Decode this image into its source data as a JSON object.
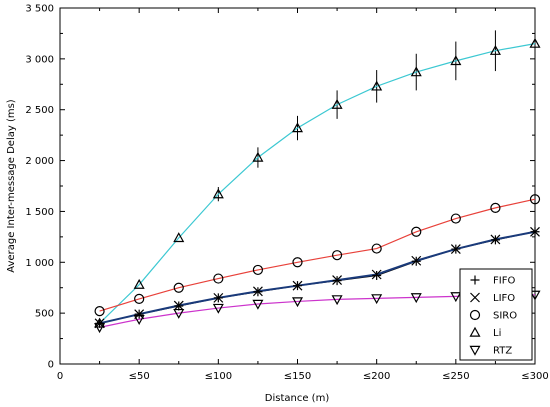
{
  "chart_data": {
    "type": "line",
    "title": "",
    "xlabel": "Distance (m)",
    "ylabel": "Average Inter-message Delay (ms)",
    "xlim": [
      0,
      300
    ],
    "ylim": [
      0,
      3500
    ],
    "x_ticks": [
      0,
      50,
      100,
      150,
      200,
      250,
      300
    ],
    "x_tick_labels": [
      "0",
      "≤50",
      "≤100",
      "≤150",
      "≤200",
      "≤250",
      "≤300"
    ],
    "y_ticks": [
      0,
      500,
      1000,
      1500,
      2000,
      2500,
      3000,
      3500
    ],
    "y_tick_labels": [
      "0",
      "500",
      "1 000",
      "1 500",
      "2 000",
      "2 500",
      "3 000",
      "3 500"
    ],
    "grid": false,
    "legend_position": "bottom-right",
    "x": [
      25,
      50,
      75,
      100,
      125,
      150,
      175,
      200,
      225,
      250,
      275,
      300
    ],
    "series": [
      {
        "name": "FIFO",
        "marker": "plus",
        "color": "#000000",
        "values": [
          400,
          490,
          570,
          650,
          710,
          770,
          820,
          870,
          1010,
          1130,
          1220,
          1300
        ]
      },
      {
        "name": "LIFO",
        "marker": "cross",
        "color": "#1a3a7a",
        "values": [
          400,
          490,
          575,
          650,
          715,
          770,
          825,
          880,
          1015,
          1130,
          1225,
          1300
        ]
      },
      {
        "name": "SIRO",
        "marker": "circle",
        "color": "#e8413a",
        "values": [
          520,
          640,
          750,
          840,
          925,
          1000,
          1070,
          1135,
          1300,
          1430,
          1535,
          1620
        ]
      },
      {
        "name": "Li",
        "marker": "triangle-up",
        "color": "#3cc8d2",
        "values": [
          400,
          780,
          1240,
          1670,
          2030,
          2320,
          2550,
          2730,
          2870,
          2980,
          3080,
          3150
        ],
        "errors": [
          0,
          0,
          0,
          70,
          100,
          120,
          140,
          160,
          180,
          190,
          200,
          30
        ]
      },
      {
        "name": "RTZ",
        "marker": "triangle-down",
        "color": "#cc33cc",
        "values": [
          360,
          440,
          500,
          550,
          590,
          615,
          635,
          645,
          655,
          665,
          675,
          680
        ]
      }
    ]
  }
}
